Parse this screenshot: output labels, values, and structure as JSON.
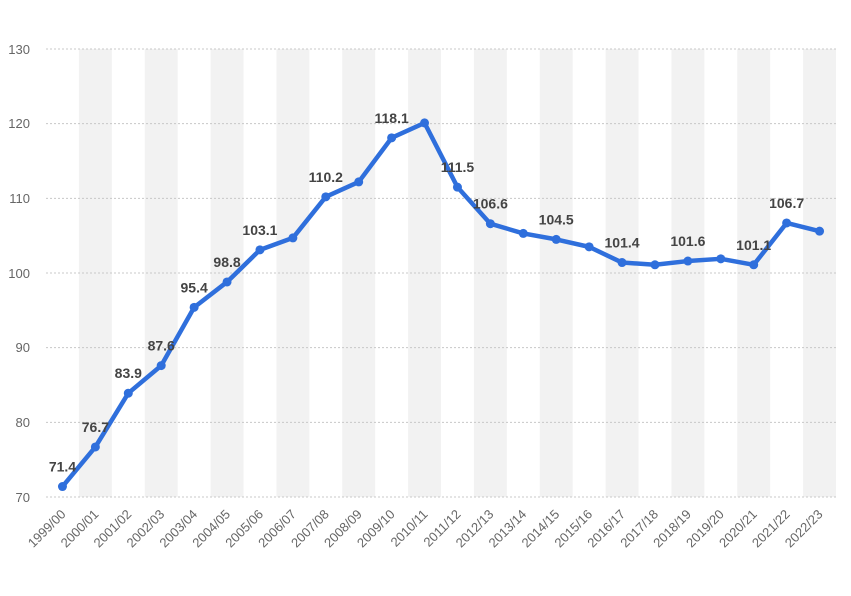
{
  "chart_data": {
    "type": "line",
    "categories": [
      "1999/00",
      "2000/01",
      "2001/02",
      "2002/03",
      "2003/04",
      "2004/05",
      "2005/06",
      "2006/07",
      "2007/08",
      "2008/09",
      "2009/10",
      "2010/11",
      "2011/12",
      "2012/13",
      "2013/14",
      "2014/15",
      "2015/16",
      "2016/17",
      "2017/18",
      "2018/19",
      "2019/20",
      "2020/21",
      "2021/22",
      "2022/23"
    ],
    "series": [
      {
        "values": [
          71.4,
          76.7,
          83.9,
          87.6,
          95.4,
          98.8,
          103.1,
          104.7,
          110.2,
          112.2,
          118.1,
          120.1,
          111.5,
          106.6,
          105.3,
          104.5,
          103.5,
          101.4,
          101.1,
          101.6,
          101.9,
          101.1,
          106.7,
          105.6
        ]
      }
    ],
    "data_labels": [
      {
        "index": 0,
        "text": "71.4"
      },
      {
        "index": 1,
        "text": "76.7"
      },
      {
        "index": 2,
        "text": "83.9"
      },
      {
        "index": 3,
        "text": "87.6"
      },
      {
        "index": 4,
        "text": "95.4"
      },
      {
        "index": 5,
        "text": "98.8"
      },
      {
        "index": 6,
        "text": "103.1"
      },
      {
        "index": 8,
        "text": "110.2"
      },
      {
        "index": 10,
        "text": "118.1"
      },
      {
        "index": 12,
        "text": "111.5"
      },
      {
        "index": 13,
        "text": "106.6"
      },
      {
        "index": 15,
        "text": "104.5"
      },
      {
        "index": 17,
        "text": "101.4"
      },
      {
        "index": 19,
        "text": "101.6"
      },
      {
        "index": 21,
        "text": "101.1"
      },
      {
        "index": 22,
        "text": "106.7"
      }
    ],
    "yticks": [
      "70",
      "80",
      "90",
      "100",
      "110",
      "120",
      "130"
    ],
    "ylim": [
      70,
      130
    ],
    "grid": true,
    "colors": {
      "line": "#2f6fdc",
      "band": "#f2f2f2",
      "grid": "#c8c8c8"
    }
  }
}
